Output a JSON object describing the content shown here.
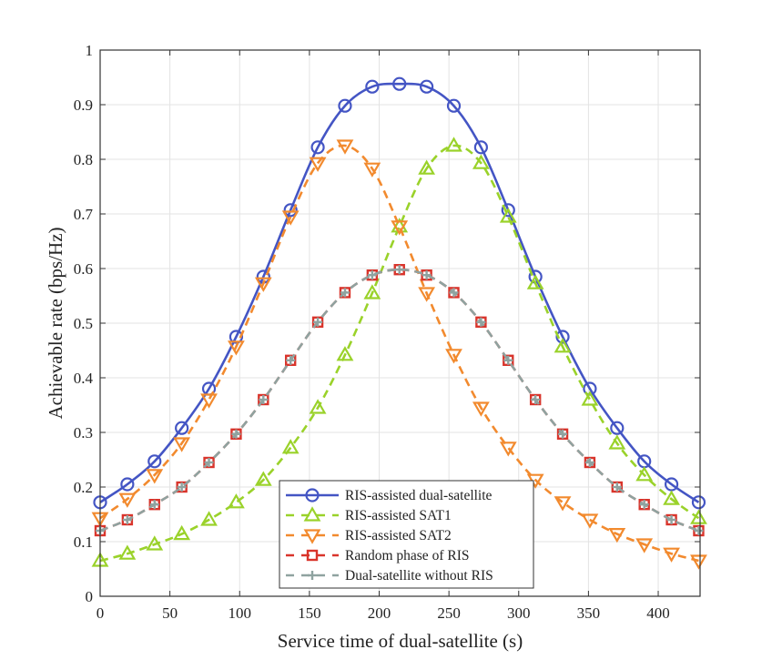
{
  "chart_data": {
    "type": "line",
    "title": "",
    "xlabel": "Service time of dual-satellite (s)",
    "ylabel": "Achievable rate (bps/Hz)",
    "xlim": [
      0,
      430
    ],
    "ylim": [
      0,
      1
    ],
    "xticks": [
      0,
      50,
      100,
      150,
      200,
      250,
      300,
      350,
      400
    ],
    "xtick_labels": [
      "0",
      "50",
      "100",
      "150",
      "200",
      "250",
      "300",
      "350",
      "400"
    ],
    "yticks": [
      0,
      0.1,
      0.2,
      0.3,
      0.4,
      0.5,
      0.6,
      0.7,
      0.8,
      0.9,
      1
    ],
    "ytick_labels": [
      "0",
      "0.1",
      "0.2",
      "0.3",
      "0.4",
      "0.5",
      "0.6",
      "0.7",
      "0.8",
      "0.9",
      "1"
    ],
    "grid": true,
    "legend_position": "bottom-center",
    "x": [
      0,
      19.5,
      39,
      58.5,
      78,
      97.5,
      117,
      136.5,
      156,
      175.5,
      195,
      214.5,
      234,
      253.5,
      273,
      292.5,
      312,
      331.5,
      351,
      370.5,
      390,
      409.5,
      429
    ],
    "series": [
      {
        "name": "RIS-assisted dual-satellite",
        "color": "#4455c4",
        "line": "solid",
        "marker": "circle",
        "values": [
          0.172,
          0.205,
          0.247,
          0.308,
          0.38,
          0.475,
          0.585,
          0.707,
          0.822,
          0.898,
          0.933,
          0.938,
          0.933,
          0.898,
          0.822,
          0.707,
          0.585,
          0.475,
          0.38,
          0.308,
          0.247,
          0.205,
          0.172
        ]
      },
      {
        "name": "RIS-assisted SAT1",
        "color": "#9ad22a",
        "line": "dashed",
        "marker": "triangle-up",
        "values": [
          0.065,
          0.078,
          0.095,
          0.114,
          0.14,
          0.172,
          0.213,
          0.272,
          0.345,
          0.442,
          0.555,
          0.677,
          0.783,
          0.825,
          0.793,
          0.695,
          0.573,
          0.457,
          0.36,
          0.28,
          0.222,
          0.178,
          0.143
        ]
      },
      {
        "name": "RIS-assisted SAT2",
        "color": "#f28a2e",
        "line": "dashed",
        "marker": "triangle-down",
        "values": [
          0.143,
          0.178,
          0.222,
          0.28,
          0.36,
          0.457,
          0.573,
          0.695,
          0.793,
          0.825,
          0.783,
          0.677,
          0.555,
          0.442,
          0.345,
          0.272,
          0.213,
          0.172,
          0.14,
          0.114,
          0.095,
          0.078,
          0.065
        ]
      },
      {
        "name": "Random phase of RIS",
        "color": "#d9342b",
        "line": "dashed",
        "marker": "square",
        "values": [
          0.12,
          0.14,
          0.168,
          0.2,
          0.245,
          0.297,
          0.36,
          0.432,
          0.502,
          0.556,
          0.588,
          0.598,
          0.588,
          0.556,
          0.502,
          0.432,
          0.36,
          0.297,
          0.245,
          0.2,
          0.168,
          0.14,
          0.12
        ]
      },
      {
        "name": "Dual-satellite without RIS",
        "color": "#8fa3a0",
        "line": "dashed",
        "marker": "plus",
        "values": [
          0.12,
          0.14,
          0.168,
          0.2,
          0.245,
          0.297,
          0.36,
          0.432,
          0.502,
          0.556,
          0.588,
          0.598,
          0.588,
          0.556,
          0.502,
          0.432,
          0.36,
          0.297,
          0.245,
          0.2,
          0.168,
          0.14,
          0.12
        ]
      }
    ]
  }
}
